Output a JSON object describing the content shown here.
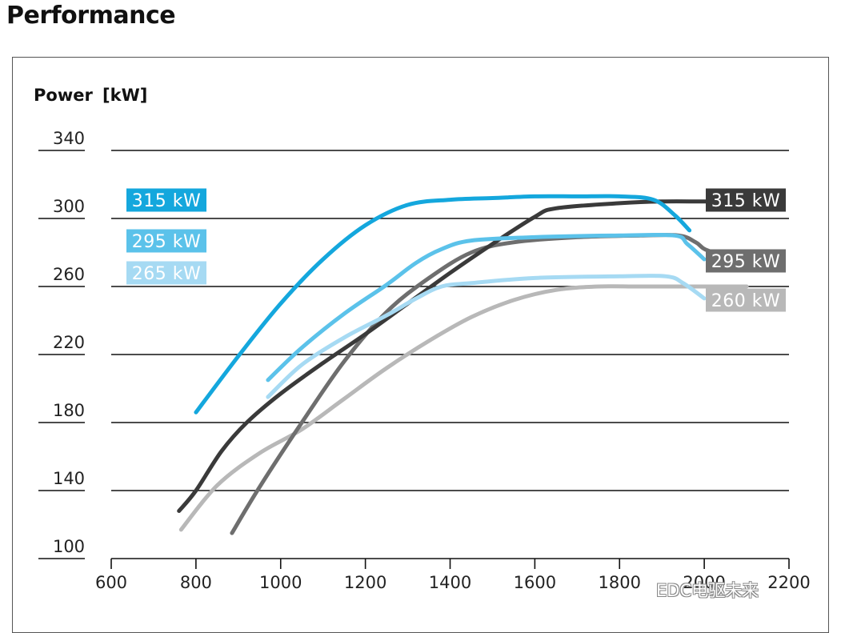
{
  "page": {
    "title": "Performance"
  },
  "watermark": "EDC电驱未来",
  "chart_data": {
    "type": "line",
    "title": "",
    "ylabel": "Power",
    "yunit": "[kW]",
    "xlabel": "",
    "xlim": [
      600,
      2200
    ],
    "ylim": [
      100,
      340
    ],
    "xticks": [
      600,
      800,
      1000,
      1200,
      1400,
      1600,
      1800,
      2000,
      2200
    ],
    "yticks": [
      100,
      140,
      180,
      220,
      260,
      300,
      340
    ],
    "grid": "horizontal",
    "series": [
      {
        "name": "315 kW",
        "color": "#14a7dd",
        "label_side": "left",
        "points": [
          [
            800,
            186
          ],
          [
            900,
            219
          ],
          [
            1000,
            250
          ],
          [
            1100,
            276
          ],
          [
            1200,
            296
          ],
          [
            1300,
            308
          ],
          [
            1400,
            311
          ],
          [
            1500,
            312
          ],
          [
            1600,
            313
          ],
          [
            1700,
            313
          ],
          [
            1800,
            313
          ],
          [
            1880,
            311
          ],
          [
            1930,
            302
          ],
          [
            1965,
            293
          ]
        ]
      },
      {
        "name": "295 kW",
        "color": "#5bc2ea",
        "label_side": "left",
        "points": [
          [
            970,
            205
          ],
          [
            1050,
            224
          ],
          [
            1150,
            244
          ],
          [
            1250,
            261
          ],
          [
            1320,
            274
          ],
          [
            1380,
            282
          ],
          [
            1450,
            287
          ],
          [
            1600,
            289
          ],
          [
            1800,
            290
          ],
          [
            1930,
            290
          ],
          [
            1960,
            285
          ],
          [
            2000,
            276
          ]
        ]
      },
      {
        "name": "265 kW",
        "color": "#a6daf3",
        "label_side": "left",
        "points": [
          [
            970,
            195
          ],
          [
            1050,
            214
          ],
          [
            1150,
            230
          ],
          [
            1250,
            243
          ],
          [
            1320,
            253
          ],
          [
            1380,
            260
          ],
          [
            1450,
            262
          ],
          [
            1600,
            265
          ],
          [
            1800,
            266
          ],
          [
            1910,
            266
          ],
          [
            1950,
            262
          ],
          [
            2000,
            253
          ]
        ]
      },
      {
        "name": "315 kW",
        "color": "#3a3a3a",
        "label_side": "right",
        "points": [
          [
            760,
            128
          ],
          [
            800,
            140
          ],
          [
            860,
            163
          ],
          [
            920,
            180
          ],
          [
            1000,
            197
          ],
          [
            1100,
            215
          ],
          [
            1200,
            232
          ],
          [
            1300,
            250
          ],
          [
            1400,
            268
          ],
          [
            1500,
            285
          ],
          [
            1600,
            301
          ],
          [
            1650,
            306
          ],
          [
            1800,
            309
          ],
          [
            1900,
            310
          ],
          [
            2000,
            310
          ],
          [
            2100,
            310
          ]
        ]
      },
      {
        "name": "295 kW",
        "color": "#6e6e6e",
        "label_side": "right",
        "points": [
          [
            885,
            115
          ],
          [
            950,
            142
          ],
          [
            1050,
            180
          ],
          [
            1150,
            216
          ],
          [
            1250,
            245
          ],
          [
            1350,
            265
          ],
          [
            1450,
            280
          ],
          [
            1550,
            286
          ],
          [
            1700,
            289
          ],
          [
            1850,
            290
          ],
          [
            1940,
            290
          ],
          [
            1980,
            286
          ],
          [
            2010,
            281
          ],
          [
            2100,
            275
          ]
        ]
      },
      {
        "name": "260 kW",
        "color": "#b8b8b8",
        "label_side": "right",
        "points": [
          [
            765,
            117
          ],
          [
            850,
            143
          ],
          [
            950,
            162
          ],
          [
            1050,
            176
          ],
          [
            1150,
            194
          ],
          [
            1250,
            212
          ],
          [
            1350,
            228
          ],
          [
            1450,
            242
          ],
          [
            1550,
            252
          ],
          [
            1650,
            258
          ],
          [
            1750,
            260
          ],
          [
            1850,
            260
          ],
          [
            2000,
            260
          ],
          [
            2100,
            260
          ]
        ]
      }
    ]
  }
}
